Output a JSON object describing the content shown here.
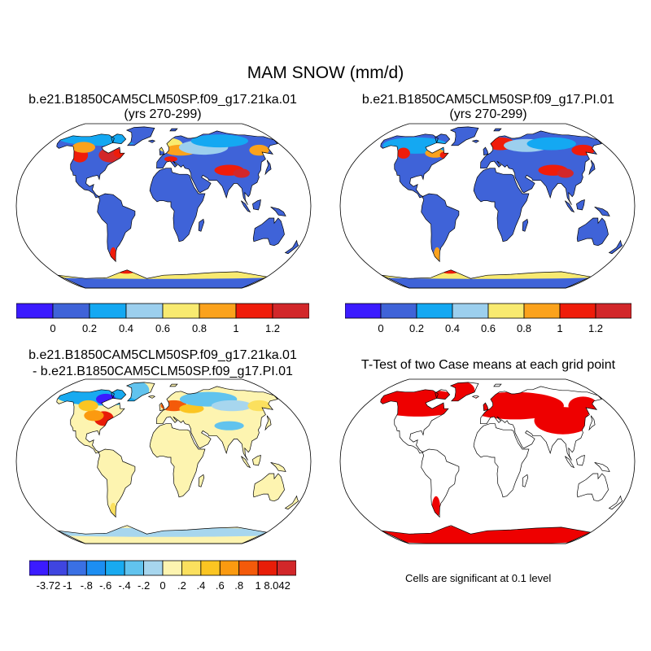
{
  "main_title": "MAM SNOW (mm/d)",
  "panels": [
    {
      "title": "b.e21.B1850CAM5CLM50SP.f09_g17.21ka.01",
      "subtitle": "(yrs 270-299)"
    },
    {
      "title": "b.e21.B1850CAM5CLM50SP.f09_g17.PI.01",
      "subtitle": "(yrs 270-299)"
    },
    {
      "title": "b.e21.B1850CAM5CLM50SP.f09_g17.21ka.01",
      "subtitle": "- b.e21.B1850CAM5CLM50SP.f09_g17.PI.01"
    },
    {
      "title": "T-Test of two Case means at each grid point",
      "subtitle": ""
    }
  ],
  "colorbar_top": {
    "colors": [
      "#3b1bff",
      "#3f63d8",
      "#14a8f2",
      "#9ccfee",
      "#f8ea70",
      "#fba21c",
      "#ef1c0a",
      "#d2272a"
    ],
    "labels": [
      "0",
      "0.2",
      "0.4",
      "0.6",
      "0.8",
      "1",
      "1.2"
    ]
  },
  "colorbar_diff": {
    "colors": [
      "#3b1bff",
      "#3f45e0",
      "#3a70e4",
      "#1c8ef2",
      "#18aaf0",
      "#61c3ee",
      "#a7d6ee",
      "#fdf4b0",
      "#fbe05e",
      "#fbc522",
      "#fb9a10",
      "#f45a0a",
      "#e81d08",
      "#d2272a"
    ],
    "labels": [
      "-3.72",
      "-1",
      "-.8",
      "-.6",
      "-.4",
      "-.2",
      "0",
      ".2",
      ".4",
      ".6",
      ".8",
      "1",
      "8.042"
    ]
  },
  "significance_note": "Cells are significant at 0.1 level",
  "colors": {
    "ocean": "#ffffff",
    "land_low": "#3f63d8",
    "land_diff_zero": "#fdf4b0",
    "significant": "#ee0000"
  }
}
